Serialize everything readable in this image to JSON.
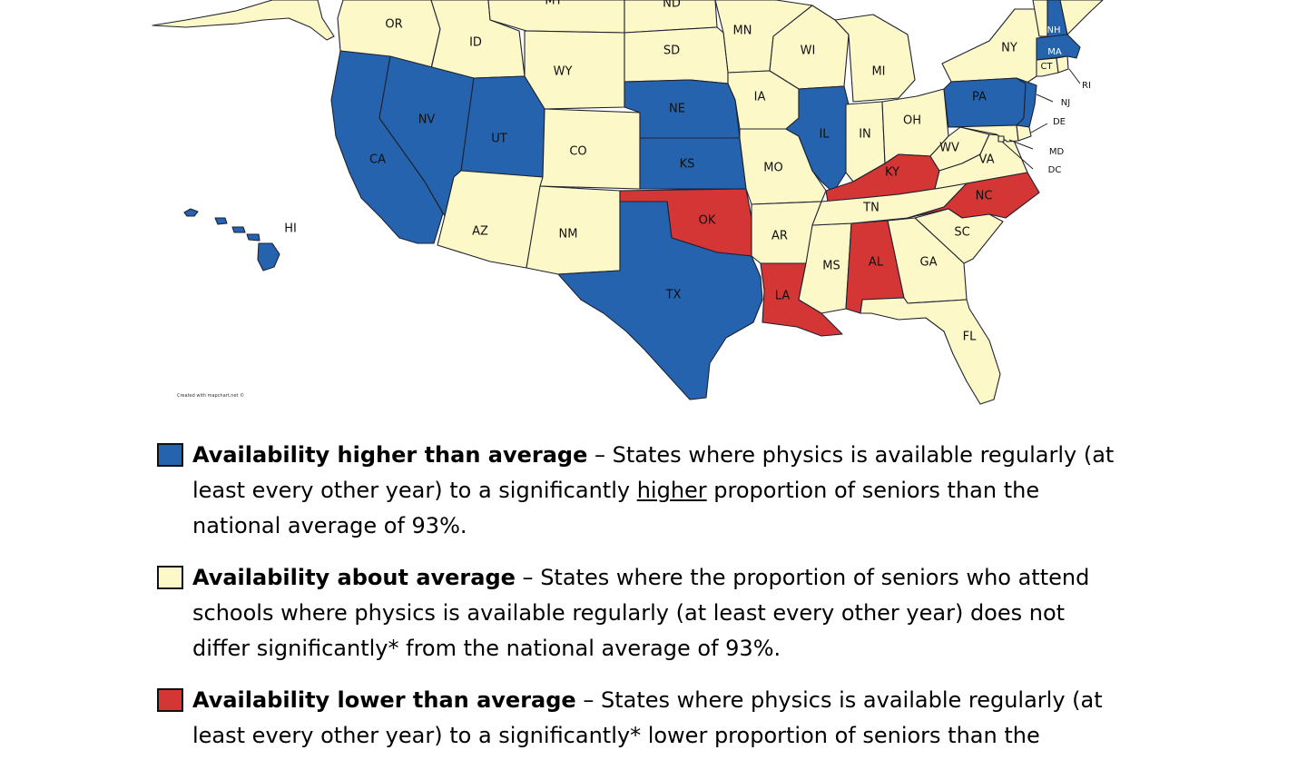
{
  "colors": {
    "higher": "#2563ae",
    "about": "#fdf8c8",
    "lower": "#d43535",
    "border": "#1e2230"
  },
  "map": {
    "credit": "Created with mapchart.net ©",
    "states": [
      {
        "code": "MT",
        "group": "about",
        "label": "MT"
      },
      {
        "code": "ND",
        "group": "about",
        "label": "ND"
      },
      {
        "code": "OR",
        "group": "about",
        "label": "OR"
      },
      {
        "code": "ID",
        "group": "about",
        "label": "ID"
      },
      {
        "code": "WY",
        "group": "about",
        "label": "WY"
      },
      {
        "code": "SD",
        "group": "about",
        "label": "SD"
      },
      {
        "code": "MN",
        "group": "about",
        "label": "MN"
      },
      {
        "code": "WI",
        "group": "about",
        "label": "WI"
      },
      {
        "code": "MI",
        "group": "about",
        "label": "MI"
      },
      {
        "code": "NY",
        "group": "about",
        "label": "NY"
      },
      {
        "code": "VT",
        "group": "about",
        "label": ""
      },
      {
        "code": "NH",
        "group": "higher",
        "label": "NH"
      },
      {
        "code": "ME",
        "group": "about",
        "label": ""
      },
      {
        "code": "MA",
        "group": "higher",
        "label": "MA"
      },
      {
        "code": "CT",
        "group": "about",
        "label": "CT"
      },
      {
        "code": "RI",
        "group": "about",
        "label": "RI"
      },
      {
        "code": "CA",
        "group": "higher",
        "label": "CA"
      },
      {
        "code": "NV",
        "group": "higher",
        "label": "NV"
      },
      {
        "code": "UT",
        "group": "higher",
        "label": "UT"
      },
      {
        "code": "CO",
        "group": "about",
        "label": "CO"
      },
      {
        "code": "NE",
        "group": "higher",
        "label": "NE"
      },
      {
        "code": "IA",
        "group": "about",
        "label": "IA"
      },
      {
        "code": "IL",
        "group": "higher",
        "label": "IL"
      },
      {
        "code": "IN",
        "group": "about",
        "label": "IN"
      },
      {
        "code": "OH",
        "group": "about",
        "label": "OH"
      },
      {
        "code": "PA",
        "group": "higher",
        "label": "PA"
      },
      {
        "code": "NJ",
        "group": "higher",
        "label": "NJ"
      },
      {
        "code": "DE",
        "group": "about",
        "label": "DE"
      },
      {
        "code": "MD",
        "group": "about",
        "label": "MD"
      },
      {
        "code": "DC",
        "group": "about",
        "label": "DC"
      },
      {
        "code": "KS",
        "group": "higher",
        "label": "KS"
      },
      {
        "code": "MO",
        "group": "about",
        "label": "MO"
      },
      {
        "code": "KY",
        "group": "lower",
        "label": "KY"
      },
      {
        "code": "WV",
        "group": "about",
        "label": "WV"
      },
      {
        "code": "VA",
        "group": "about",
        "label": "VA"
      },
      {
        "code": "AZ",
        "group": "about",
        "label": "AZ"
      },
      {
        "code": "NM",
        "group": "about",
        "label": "NM"
      },
      {
        "code": "OK",
        "group": "lower",
        "label": "OK"
      },
      {
        "code": "AR",
        "group": "about",
        "label": "AR"
      },
      {
        "code": "TN",
        "group": "about",
        "label": "TN"
      },
      {
        "code": "NC",
        "group": "lower",
        "label": "NC"
      },
      {
        "code": "SC",
        "group": "about",
        "label": "SC"
      },
      {
        "code": "TX",
        "group": "higher",
        "label": "TX"
      },
      {
        "code": "LA",
        "group": "lower",
        "label": "LA"
      },
      {
        "code": "MS",
        "group": "about",
        "label": "MS"
      },
      {
        "code": "AL",
        "group": "lower",
        "label": "AL"
      },
      {
        "code": "GA",
        "group": "about",
        "label": "GA"
      },
      {
        "code": "FL",
        "group": "about",
        "label": "FL"
      },
      {
        "code": "WA",
        "group": "about",
        "label": ""
      },
      {
        "code": "AK",
        "group": "about",
        "label": ""
      },
      {
        "code": "HI",
        "group": "higher",
        "label": "HI"
      }
    ]
  },
  "legend": [
    {
      "group": "higher",
      "title": "Availability higher than average",
      "dash": " – ",
      "pre": "States where physics is available regularly (at least every other year) to a significantly ",
      "em": "higher",
      "post": " proportion of seniors than the national average of 93%."
    },
    {
      "group": "about",
      "title": "Availability about average",
      "dash": " – ",
      "pre": "States where the proportion of seniors who attend schools where physics is available regularly (at least every other year) does not differ significantly* from the national average of 93%.",
      "em": "",
      "post": ""
    },
    {
      "group": "lower",
      "title": "Availability lower than average",
      "dash": " – ",
      "pre": "States where physics is available regularly (at least every other year) to a significantly* lower proportion of seniors than the",
      "em": "",
      "post": ""
    }
  ]
}
